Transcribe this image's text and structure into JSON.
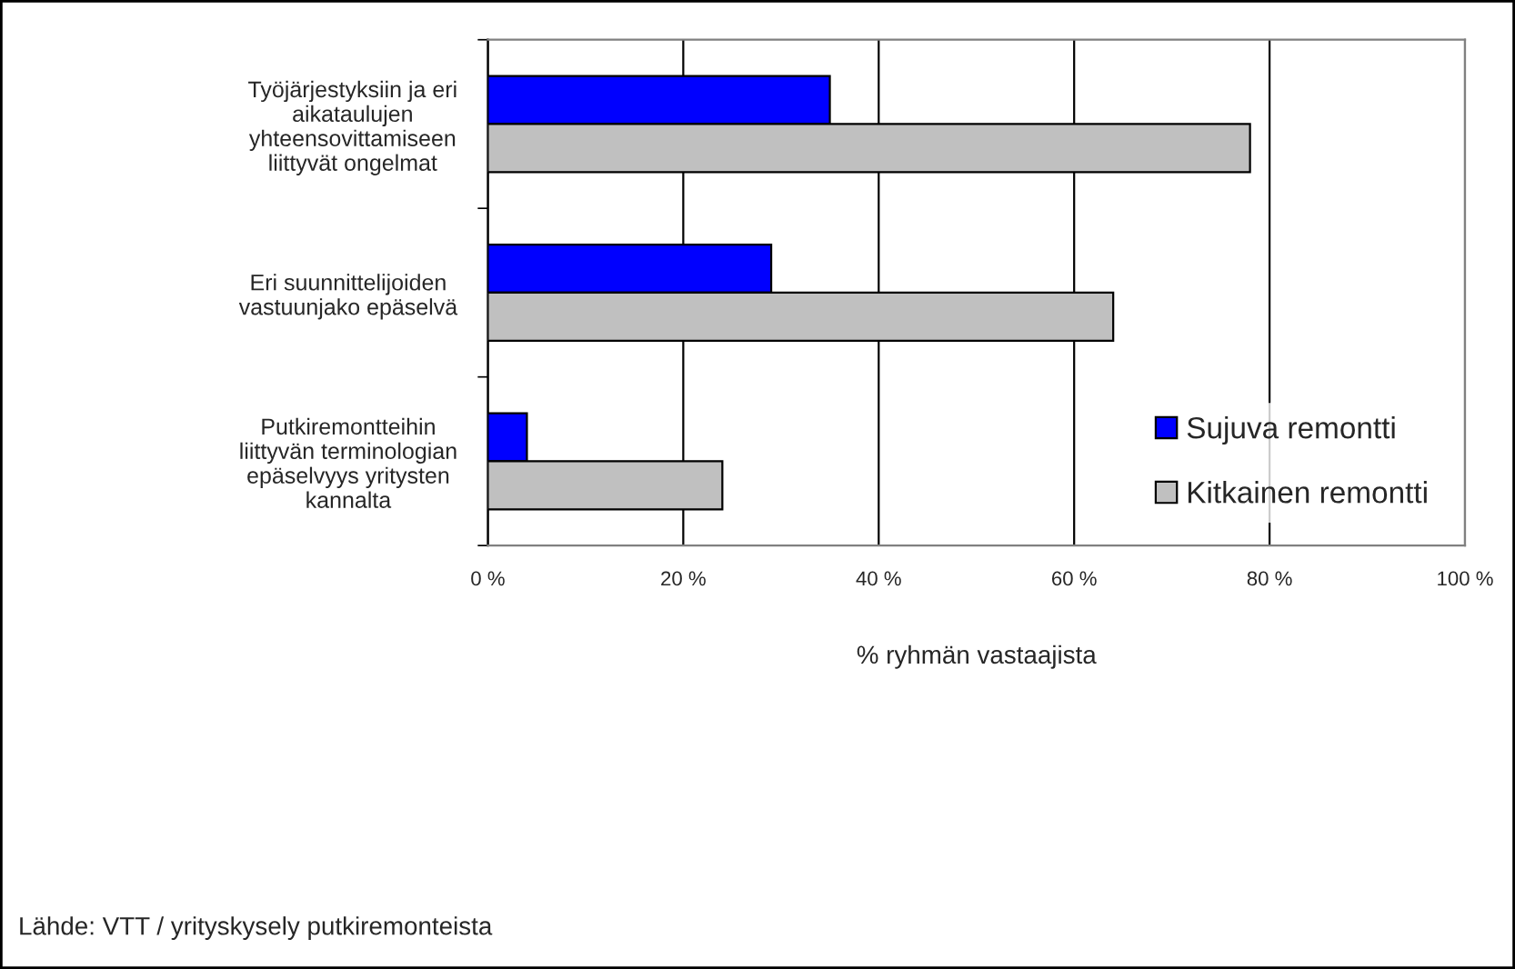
{
  "chart_data": {
    "type": "bar",
    "orientation": "horizontal",
    "categories": [
      "Työjärjestyksiin ja eri\naikataulujen\nyhteensovittamiseen\nliittyvät ongelmat",
      "Eri suunnittelijoiden\nvastuunjako epäselvä",
      "Putkiremontteihin\nliittyvän terminologian\nepäselvyys yritysten\nkannalta"
    ],
    "series": [
      {
        "name": "Sujuva remontti",
        "color": "#0000ff",
        "values": [
          35,
          29,
          4
        ]
      },
      {
        "name": "Kitkainen remontti",
        "color": "#c0c0c0",
        "values": [
          78,
          64,
          24
        ]
      }
    ],
    "xlim": [
      0,
      100
    ],
    "xticks": [
      {
        "value": 0,
        "label": "0 %"
      },
      {
        "value": 20,
        "label": "20 %"
      },
      {
        "value": 40,
        "label": "40 %"
      },
      {
        "value": 60,
        "label": "60 %"
      },
      {
        "value": 80,
        "label": "80 %"
      },
      {
        "value": 100,
        "label": "100 %"
      }
    ],
    "xlabel": "% ryhmän vastaajista",
    "grid": "x",
    "legend": "bottom right",
    "annotations": [
      "Lähde: VTT / yrityskysely putkiremonteista"
    ]
  }
}
